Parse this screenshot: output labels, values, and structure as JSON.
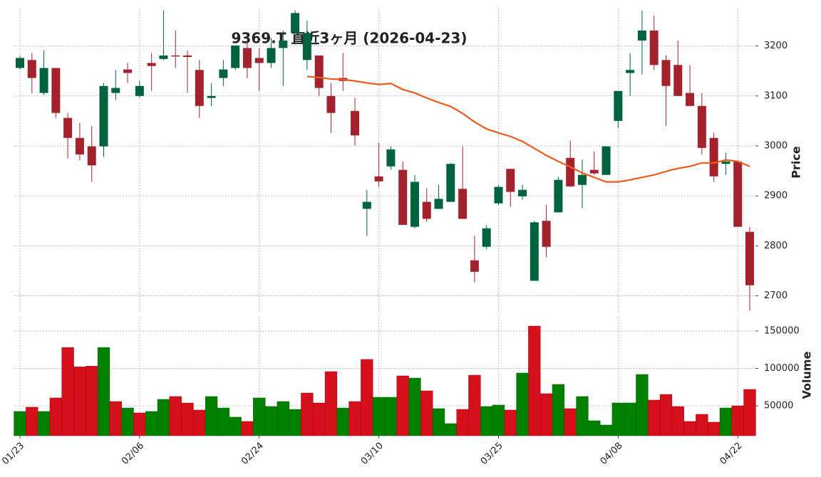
{
  "chart_data": {
    "type": "candlestick",
    "title": "9369.T 直近3ヶ月 (2026-04-23)",
    "ylabel": "Price",
    "categories": [
      "01/23",
      null,
      null,
      null,
      null,
      null,
      null,
      null,
      null,
      null,
      "02/06",
      null,
      null,
      null,
      null,
      null,
      null,
      null,
      null,
      null,
      "02/24",
      null,
      null,
      null,
      null,
      null,
      null,
      null,
      null,
      null,
      "03/10",
      null,
      null,
      null,
      null,
      null,
      null,
      null,
      null,
      null,
      "03/25",
      null,
      null,
      null,
      null,
      null,
      null,
      null,
      null,
      null,
      "04/08",
      null,
      null,
      null,
      null,
      null,
      null,
      null,
      null,
      null,
      "04/22",
      null
    ],
    "open": [
      3156,
      3172,
      3106,
      3156,
      3056,
      3016,
      2999,
      2999,
      3106,
      3153,
      3100,
      3166,
      3174,
      3181,
      3181,
      3152,
      3096,
      3136,
      3156,
      3196,
      3176,
      3166,
      3196,
      3226,
      3172,
      3181,
      3100,
      3136,
      3070,
      2874,
      2939,
      2959,
      2952,
      2838,
      2888,
      2874,
      2888,
      2914,
      2771,
      2798,
      2885,
      2954,
      2899,
      2730,
      2850,
      2867,
      2976,
      2922,
      2952,
      2942,
      3050,
      3146,
      3211,
      3231,
      3172,
      3162,
      3106,
      3080,
      3016,
      2964,
      2969,
      2828
    ],
    "high": [
      3180,
      3186,
      3191,
      3156,
      3066,
      3046,
      3040,
      3126,
      3152,
      3166,
      3130,
      3186,
      3271,
      3231,
      3191,
      3172,
      3126,
      3172,
      3201,
      3211,
      3196,
      3216,
      3231,
      3271,
      3251,
      3181,
      3126,
      3186,
      3096,
      2912,
      3006,
      2999,
      2969,
      2942,
      2915,
      2922,
      2966,
      2999,
      2820,
      2841,
      2922,
      2954,
      2922,
      2850,
      2882,
      2938,
      3011,
      2973,
      2989,
      2999,
      3110,
      3186,
      3271,
      3261,
      3181,
      3211,
      3162,
      3106,
      3026,
      2986,
      2969,
      2838
    ],
    "low": [
      3153,
      3106,
      3102,
      3056,
      2975,
      2971,
      2928,
      2978,
      3092,
      3126,
      3097,
      3110,
      3172,
      3156,
      3106,
      3056,
      3080,
      3120,
      3152,
      3136,
      3110,
      3156,
      3120,
      3226,
      3152,
      3100,
      3026,
      3110,
      3001,
      2820,
      2918,
      2952,
      2842,
      2835,
      2848,
      2874,
      2888,
      2854,
      2727,
      2793,
      2882,
      2878,
      2892,
      2730,
      2777,
      2867,
      2918,
      2875,
      2942,
      2942,
      3036,
      3100,
      3143,
      3152,
      3040,
      3100,
      3080,
      2983,
      2928,
      2942,
      2838,
      2670
    ],
    "close": [
      3176,
      3136,
      3156,
      3066,
      3016,
      2983,
      2961,
      3120,
      3116,
      3146,
      3120,
      3160,
      3181,
      3179,
      3178,
      3080,
      3100,
      3153,
      3201,
      3156,
      3166,
      3196,
      3211,
      3266,
      3226,
      3116,
      3066,
      3130,
      3021,
      2888,
      2929,
      2993,
      2842,
      2928,
      2854,
      2894,
      2964,
      2854,
      2748,
      2835,
      2918,
      2908,
      2912,
      2847,
      2798,
      2932,
      2919,
      2942,
      2945,
      2999,
      3110,
      3152,
      3231,
      3162,
      3120,
      3100,
      3080,
      2996,
      2939,
      2969,
      2838,
      2721
    ],
    "up_color": "#006340",
    "down_color": "#a3222c",
    "ma": {
      "color": "#f05a1a",
      "values": [
        null,
        null,
        null,
        null,
        null,
        null,
        null,
        null,
        null,
        null,
        null,
        null,
        null,
        null,
        null,
        null,
        null,
        null,
        null,
        null,
        null,
        null,
        null,
        null,
        3139,
        3137,
        3134,
        3133,
        3130,
        3126,
        3123,
        3125,
        3113,
        3106,
        3096,
        3087,
        3079,
        3065,
        3048,
        3034,
        3026,
        3019,
        3009,
        2995,
        2981,
        2969,
        2958,
        2946,
        2937,
        2928,
        2928,
        2932,
        2937,
        2942,
        2949,
        2955,
        2959,
        2966,
        2966,
        2972,
        2969,
        2959
      ]
    },
    "ylim": [
      2665,
      3275
    ],
    "yticks": [
      2700,
      2800,
      2900,
      3000,
      3100,
      3200
    ],
    "volume": {
      "ylabel": "Volume",
      "up_color": "#008000",
      "down_color": "#d4101c",
      "values": [
        42400,
        48100,
        42400,
        60500,
        128000,
        102000,
        103000,
        128000,
        55700,
        47100,
        40500,
        42400,
        58600,
        62400,
        53800,
        44300,
        62400,
        47100,
        34800,
        29100,
        60500,
        49000,
        55700,
        45200,
        67100,
        53800,
        95700,
        47100,
        55700,
        112000,
        61400,
        61400,
        90000,
        87100,
        70000,
        46200,
        26200,
        45200,
        90900,
        49000,
        51000,
        44300,
        93800,
        156600,
        66200,
        78600,
        46200,
        62400,
        30000,
        24300,
        53800,
        53800,
        91900,
        57600,
        65200,
        49000,
        29100,
        38600,
        28100,
        47100,
        50000,
        71900
      ],
      "ylim": [
        10000,
        169000
      ],
      "yticks": [
        50000,
        100000,
        150000
      ]
    },
    "grid": true
  }
}
